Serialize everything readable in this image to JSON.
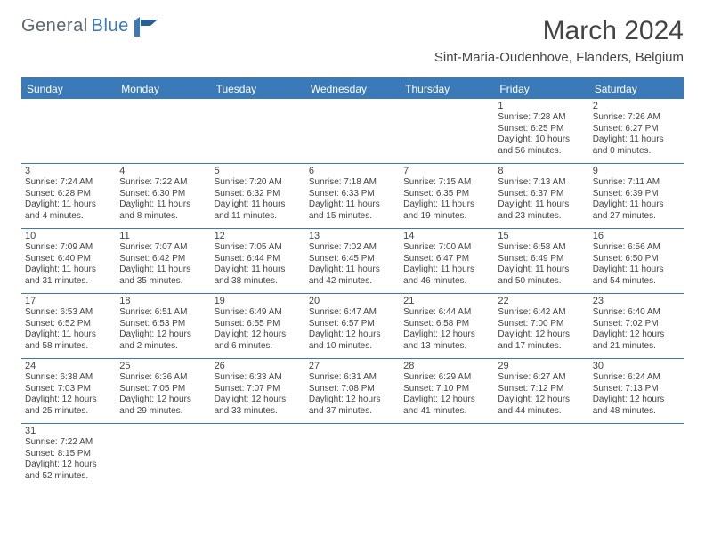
{
  "brand": {
    "part1": "General",
    "part2": "Blue"
  },
  "title": "March 2024",
  "location": "Sint-Maria-Oudenhove, Flanders, Belgium",
  "colors": {
    "accent": "#3a7ab8",
    "text": "#444444",
    "logo_gray": "#5a6670",
    "background": "#ffffff"
  },
  "day_names": [
    "Sunday",
    "Monday",
    "Tuesday",
    "Wednesday",
    "Thursday",
    "Friday",
    "Saturday"
  ],
  "weeks": [
    [
      null,
      null,
      null,
      null,
      null,
      {
        "n": "1",
        "sr": "Sunrise: 7:28 AM",
        "ss": "Sunset: 6:25 PM",
        "d1": "Daylight: 10 hours",
        "d2": "and 56 minutes."
      },
      {
        "n": "2",
        "sr": "Sunrise: 7:26 AM",
        "ss": "Sunset: 6:27 PM",
        "d1": "Daylight: 11 hours",
        "d2": "and 0 minutes."
      }
    ],
    [
      {
        "n": "3",
        "sr": "Sunrise: 7:24 AM",
        "ss": "Sunset: 6:28 PM",
        "d1": "Daylight: 11 hours",
        "d2": "and 4 minutes."
      },
      {
        "n": "4",
        "sr": "Sunrise: 7:22 AM",
        "ss": "Sunset: 6:30 PM",
        "d1": "Daylight: 11 hours",
        "d2": "and 8 minutes."
      },
      {
        "n": "5",
        "sr": "Sunrise: 7:20 AM",
        "ss": "Sunset: 6:32 PM",
        "d1": "Daylight: 11 hours",
        "d2": "and 11 minutes."
      },
      {
        "n": "6",
        "sr": "Sunrise: 7:18 AM",
        "ss": "Sunset: 6:33 PM",
        "d1": "Daylight: 11 hours",
        "d2": "and 15 minutes."
      },
      {
        "n": "7",
        "sr": "Sunrise: 7:15 AM",
        "ss": "Sunset: 6:35 PM",
        "d1": "Daylight: 11 hours",
        "d2": "and 19 minutes."
      },
      {
        "n": "8",
        "sr": "Sunrise: 7:13 AM",
        "ss": "Sunset: 6:37 PM",
        "d1": "Daylight: 11 hours",
        "d2": "and 23 minutes."
      },
      {
        "n": "9",
        "sr": "Sunrise: 7:11 AM",
        "ss": "Sunset: 6:39 PM",
        "d1": "Daylight: 11 hours",
        "d2": "and 27 minutes."
      }
    ],
    [
      {
        "n": "10",
        "sr": "Sunrise: 7:09 AM",
        "ss": "Sunset: 6:40 PM",
        "d1": "Daylight: 11 hours",
        "d2": "and 31 minutes."
      },
      {
        "n": "11",
        "sr": "Sunrise: 7:07 AM",
        "ss": "Sunset: 6:42 PM",
        "d1": "Daylight: 11 hours",
        "d2": "and 35 minutes."
      },
      {
        "n": "12",
        "sr": "Sunrise: 7:05 AM",
        "ss": "Sunset: 6:44 PM",
        "d1": "Daylight: 11 hours",
        "d2": "and 38 minutes."
      },
      {
        "n": "13",
        "sr": "Sunrise: 7:02 AM",
        "ss": "Sunset: 6:45 PM",
        "d1": "Daylight: 11 hours",
        "d2": "and 42 minutes."
      },
      {
        "n": "14",
        "sr": "Sunrise: 7:00 AM",
        "ss": "Sunset: 6:47 PM",
        "d1": "Daylight: 11 hours",
        "d2": "and 46 minutes."
      },
      {
        "n": "15",
        "sr": "Sunrise: 6:58 AM",
        "ss": "Sunset: 6:49 PM",
        "d1": "Daylight: 11 hours",
        "d2": "and 50 minutes."
      },
      {
        "n": "16",
        "sr": "Sunrise: 6:56 AM",
        "ss": "Sunset: 6:50 PM",
        "d1": "Daylight: 11 hours",
        "d2": "and 54 minutes."
      }
    ],
    [
      {
        "n": "17",
        "sr": "Sunrise: 6:53 AM",
        "ss": "Sunset: 6:52 PM",
        "d1": "Daylight: 11 hours",
        "d2": "and 58 minutes."
      },
      {
        "n": "18",
        "sr": "Sunrise: 6:51 AM",
        "ss": "Sunset: 6:53 PM",
        "d1": "Daylight: 12 hours",
        "d2": "and 2 minutes."
      },
      {
        "n": "19",
        "sr": "Sunrise: 6:49 AM",
        "ss": "Sunset: 6:55 PM",
        "d1": "Daylight: 12 hours",
        "d2": "and 6 minutes."
      },
      {
        "n": "20",
        "sr": "Sunrise: 6:47 AM",
        "ss": "Sunset: 6:57 PM",
        "d1": "Daylight: 12 hours",
        "d2": "and 10 minutes."
      },
      {
        "n": "21",
        "sr": "Sunrise: 6:44 AM",
        "ss": "Sunset: 6:58 PM",
        "d1": "Daylight: 12 hours",
        "d2": "and 13 minutes."
      },
      {
        "n": "22",
        "sr": "Sunrise: 6:42 AM",
        "ss": "Sunset: 7:00 PM",
        "d1": "Daylight: 12 hours",
        "d2": "and 17 minutes."
      },
      {
        "n": "23",
        "sr": "Sunrise: 6:40 AM",
        "ss": "Sunset: 7:02 PM",
        "d1": "Daylight: 12 hours",
        "d2": "and 21 minutes."
      }
    ],
    [
      {
        "n": "24",
        "sr": "Sunrise: 6:38 AM",
        "ss": "Sunset: 7:03 PM",
        "d1": "Daylight: 12 hours",
        "d2": "and 25 minutes."
      },
      {
        "n": "25",
        "sr": "Sunrise: 6:36 AM",
        "ss": "Sunset: 7:05 PM",
        "d1": "Daylight: 12 hours",
        "d2": "and 29 minutes."
      },
      {
        "n": "26",
        "sr": "Sunrise: 6:33 AM",
        "ss": "Sunset: 7:07 PM",
        "d1": "Daylight: 12 hours",
        "d2": "and 33 minutes."
      },
      {
        "n": "27",
        "sr": "Sunrise: 6:31 AM",
        "ss": "Sunset: 7:08 PM",
        "d1": "Daylight: 12 hours",
        "d2": "and 37 minutes."
      },
      {
        "n": "28",
        "sr": "Sunrise: 6:29 AM",
        "ss": "Sunset: 7:10 PM",
        "d1": "Daylight: 12 hours",
        "d2": "and 41 minutes."
      },
      {
        "n": "29",
        "sr": "Sunrise: 6:27 AM",
        "ss": "Sunset: 7:12 PM",
        "d1": "Daylight: 12 hours",
        "d2": "and 44 minutes."
      },
      {
        "n": "30",
        "sr": "Sunrise: 6:24 AM",
        "ss": "Sunset: 7:13 PM",
        "d1": "Daylight: 12 hours",
        "d2": "and 48 minutes."
      }
    ],
    [
      {
        "n": "31",
        "sr": "Sunrise: 7:22 AM",
        "ss": "Sunset: 8:15 PM",
        "d1": "Daylight: 12 hours",
        "d2": "and 52 minutes."
      },
      null,
      null,
      null,
      null,
      null,
      null
    ]
  ]
}
